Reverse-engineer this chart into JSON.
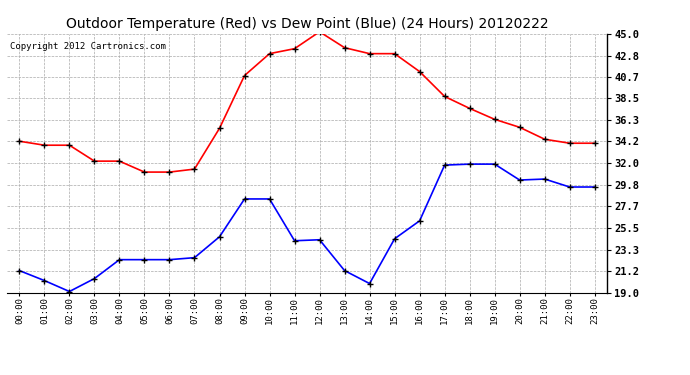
{
  "title": "Outdoor Temperature (Red) vs Dew Point (Blue) (24 Hours) 20120222",
  "copyright": "Copyright 2012 Cartronics.com",
  "hours": [
    "00:00",
    "01:00",
    "02:00",
    "03:00",
    "04:00",
    "05:00",
    "06:00",
    "07:00",
    "08:00",
    "09:00",
    "10:00",
    "11:00",
    "12:00",
    "13:00",
    "14:00",
    "15:00",
    "16:00",
    "17:00",
    "18:00",
    "19:00",
    "20:00",
    "21:00",
    "22:00",
    "23:00"
  ],
  "temp_red": [
    34.2,
    33.8,
    33.8,
    32.2,
    32.2,
    31.1,
    31.1,
    31.4,
    35.5,
    40.8,
    43.0,
    43.5,
    45.2,
    43.6,
    43.0,
    43.0,
    41.2,
    38.7,
    37.5,
    36.4,
    35.6,
    34.4,
    34.0,
    34.0
  ],
  "dew_blue": [
    21.2,
    20.2,
    19.1,
    20.4,
    22.3,
    22.3,
    22.3,
    22.5,
    24.6,
    28.4,
    28.4,
    24.2,
    24.3,
    21.2,
    19.9,
    24.4,
    26.2,
    31.8,
    31.9,
    31.9,
    30.3,
    30.4,
    29.6,
    29.6
  ],
  "ylim": [
    19.0,
    45.0
  ],
  "yticks": [
    19.0,
    21.2,
    23.3,
    25.5,
    27.7,
    29.8,
    32.0,
    34.2,
    36.3,
    38.5,
    40.7,
    42.8,
    45.0
  ],
  "grid_color": "#aaaaaa",
  "bg_color": "#ffffff",
  "title_fontsize": 10,
  "copyright_fontsize": 6.5
}
